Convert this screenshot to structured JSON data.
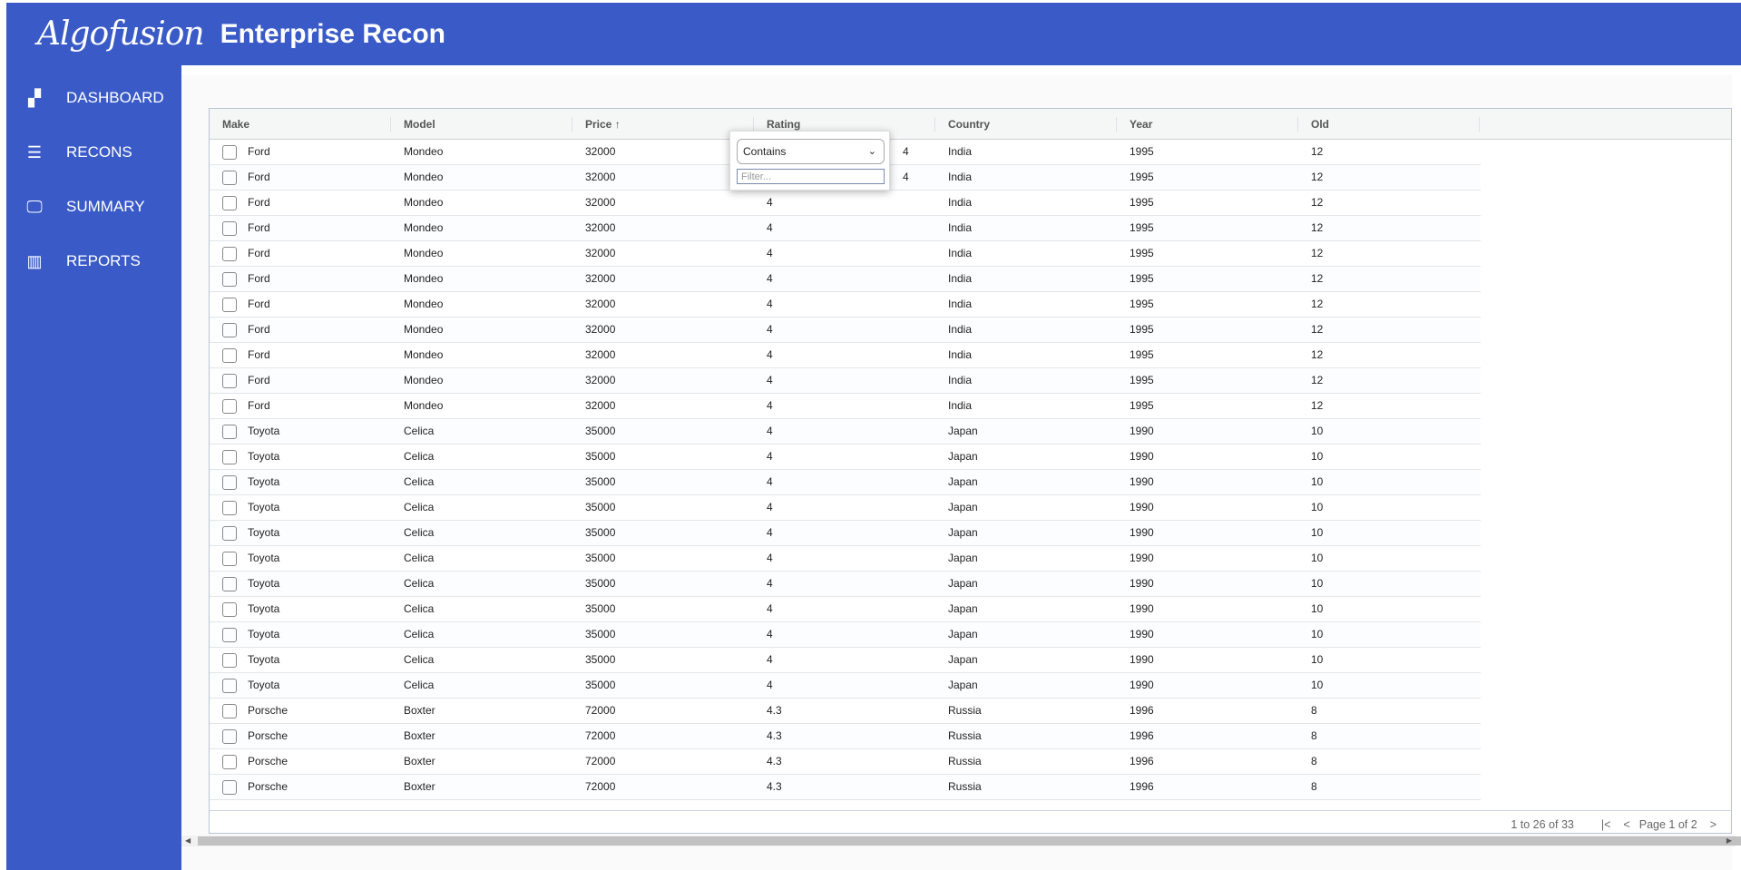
{
  "header": {
    "logo": "Algofusion",
    "title": "Enterprise Recon"
  },
  "sidebar": {
    "items": [
      {
        "label": "DASHBOARD",
        "icon": "dashboard-icon",
        "glyph": "▞"
      },
      {
        "label": "RECONS",
        "icon": "list-icon",
        "glyph": "☰"
      },
      {
        "label": "SUMMARY",
        "icon": "monitor-icon",
        "glyph": "🖵"
      },
      {
        "label": "REPORTS",
        "icon": "table-icon",
        "glyph": "▥"
      }
    ]
  },
  "grid": {
    "columns": [
      "Make",
      "Model",
      "Price",
      "Rating",
      "Country",
      "Year",
      "Old"
    ],
    "sort_indicator": "↑",
    "rows": [
      [
        "Ford",
        "Mondeo",
        "32000",
        "4",
        "India",
        "1995",
        "12"
      ],
      [
        "Ford",
        "Mondeo",
        "32000",
        "4",
        "India",
        "1995",
        "12"
      ],
      [
        "Ford",
        "Mondeo",
        "32000",
        "4",
        "India",
        "1995",
        "12"
      ],
      [
        "Ford",
        "Mondeo",
        "32000",
        "4",
        "India",
        "1995",
        "12"
      ],
      [
        "Ford",
        "Mondeo",
        "32000",
        "4",
        "India",
        "1995",
        "12"
      ],
      [
        "Ford",
        "Mondeo",
        "32000",
        "4",
        "India",
        "1995",
        "12"
      ],
      [
        "Ford",
        "Mondeo",
        "32000",
        "4",
        "India",
        "1995",
        "12"
      ],
      [
        "Ford",
        "Mondeo",
        "32000",
        "4",
        "India",
        "1995",
        "12"
      ],
      [
        "Ford",
        "Mondeo",
        "32000",
        "4",
        "India",
        "1995",
        "12"
      ],
      [
        "Ford",
        "Mondeo",
        "32000",
        "4",
        "India",
        "1995",
        "12"
      ],
      [
        "Ford",
        "Mondeo",
        "32000",
        "4",
        "India",
        "1995",
        "12"
      ],
      [
        "Toyota",
        "Celica",
        "35000",
        "4",
        "Japan",
        "1990",
        "10"
      ],
      [
        "Toyota",
        "Celica",
        "35000",
        "4",
        "Japan",
        "1990",
        "10"
      ],
      [
        "Toyota",
        "Celica",
        "35000",
        "4",
        "Japan",
        "1990",
        "10"
      ],
      [
        "Toyota",
        "Celica",
        "35000",
        "4",
        "Japan",
        "1990",
        "10"
      ],
      [
        "Toyota",
        "Celica",
        "35000",
        "4",
        "Japan",
        "1990",
        "10"
      ],
      [
        "Toyota",
        "Celica",
        "35000",
        "4",
        "Japan",
        "1990",
        "10"
      ],
      [
        "Toyota",
        "Celica",
        "35000",
        "4",
        "Japan",
        "1990",
        "10"
      ],
      [
        "Toyota",
        "Celica",
        "35000",
        "4",
        "Japan",
        "1990",
        "10"
      ],
      [
        "Toyota",
        "Celica",
        "35000",
        "4",
        "Japan",
        "1990",
        "10"
      ],
      [
        "Toyota",
        "Celica",
        "35000",
        "4",
        "Japan",
        "1990",
        "10"
      ],
      [
        "Toyota",
        "Celica",
        "35000",
        "4",
        "Japan",
        "1990",
        "10"
      ],
      [
        "Porsche",
        "Boxter",
        "72000",
        "4.3",
        "Russia",
        "1996",
        "8"
      ],
      [
        "Porsche",
        "Boxter",
        "72000",
        "4.3",
        "Russia",
        "1996",
        "8"
      ],
      [
        "Porsche",
        "Boxter",
        "72000",
        "4.3",
        "Russia",
        "1996",
        "8"
      ],
      [
        "Porsche",
        "Boxter",
        "72000",
        "4.3",
        "Russia",
        "1996",
        "8"
      ]
    ],
    "pagination": {
      "summary": "1 to 26 of 33",
      "page": "Page 1 of 2",
      "first": "|<",
      "prev": "<",
      "next": ">"
    }
  },
  "filter_popup": {
    "operator": "Contains",
    "placeholder": "Filter..."
  },
  "colors": {
    "brand": "#3a5bc7"
  }
}
